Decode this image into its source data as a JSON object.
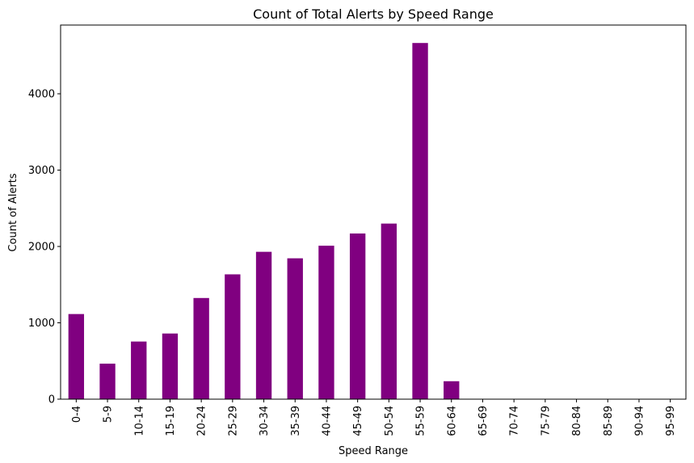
{
  "chart_data": {
    "type": "bar",
    "title": "Count of Total Alerts by Speed Range",
    "xlabel": "Speed Range",
    "ylabel": "Count of Alerts",
    "categories": [
      "0-4",
      "5-9",
      "10-14",
      "15-19",
      "20-24",
      "25-29",
      "30-34",
      "35-39",
      "40-44",
      "45-49",
      "50-54",
      "55-59",
      "60-64",
      "65-69",
      "70-74",
      "75-79",
      "80-84",
      "85-89",
      "90-94",
      "95-99"
    ],
    "values": [
      1115,
      465,
      755,
      860,
      1325,
      1635,
      1930,
      1845,
      2010,
      2170,
      2300,
      4665,
      235,
      0,
      0,
      0,
      0,
      0,
      0,
      0
    ],
    "ylim": [
      0,
      4900
    ],
    "yticks": [
      0,
      1000,
      2000,
      3000,
      4000
    ],
    "color": "#800080",
    "grid": false,
    "legend": "none"
  }
}
